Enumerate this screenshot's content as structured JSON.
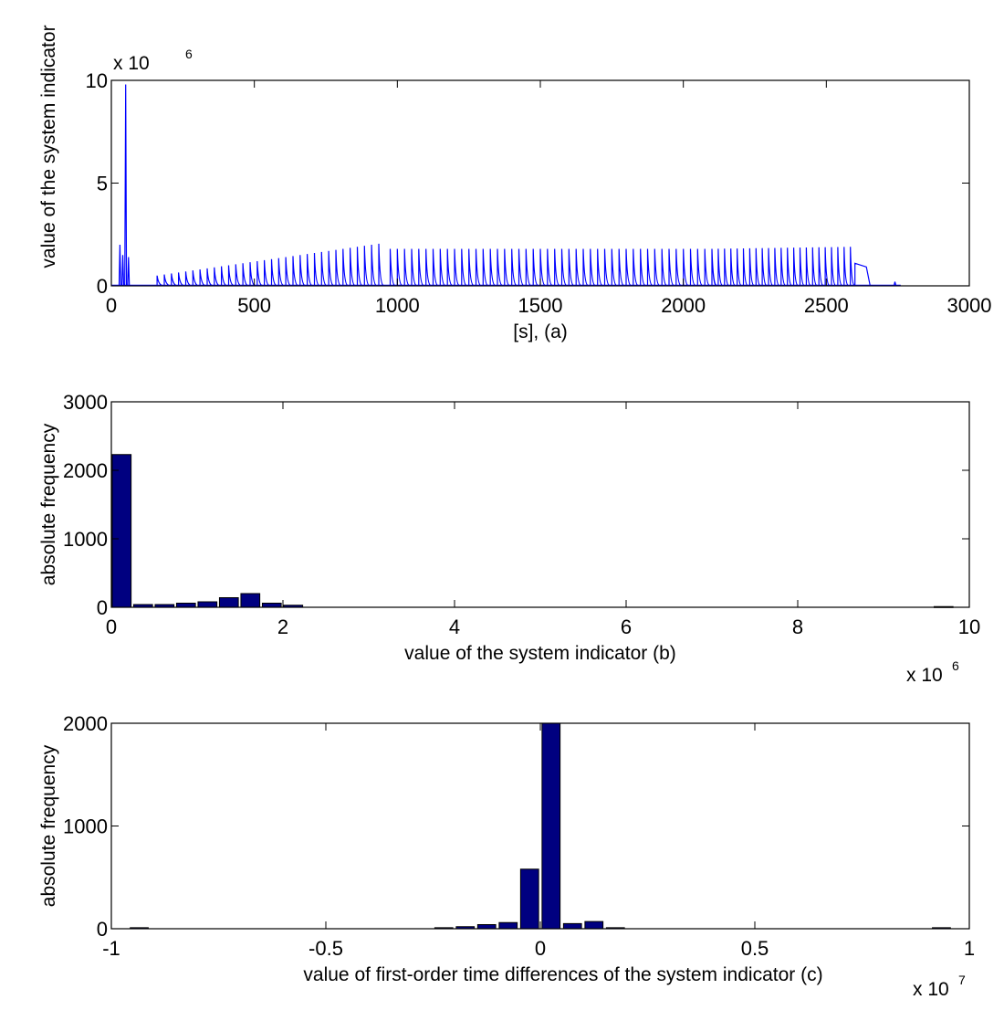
{
  "chart_data": [
    {
      "id": "a",
      "type": "line",
      "xlabel": "[s], (a)",
      "ylabel": "value of the system indicator",
      "xlim": [
        0,
        3000
      ],
      "ylim": [
        0,
        10
      ],
      "xticks": [
        0,
        500,
        1000,
        1500,
        2000,
        2500,
        3000
      ],
      "xtick_labels": [
        "0",
        "500",
        "1000",
        "1500",
        "2000",
        "2500",
        "3000"
      ],
      "yticks": [
        0,
        5,
        10
      ],
      "ytick_labels": [
        "0",
        "5",
        "10"
      ],
      "y_multiplier": {
        "base": "x 10",
        "exponent": "6"
      },
      "series": [
        {
          "color": "#0000ff",
          "segments": [
            {
              "type": "spike",
              "x": 30,
              "y": 2.0
            },
            {
              "type": "spike",
              "x": 40,
              "y": 1.5
            },
            {
              "type": "spike",
              "x": 50,
              "y": 9.8
            },
            {
              "type": "spike",
              "x": 60,
              "y": 1.4
            },
            {
              "type": "spikes",
              "start": 160,
              "end": 950,
              "step": 25,
              "y_start": 0.5,
              "y_end": 2.1
            },
            {
              "type": "spikes",
              "start": 975,
              "end": 2100,
              "step": 25,
              "y_start": 1.8,
              "y_end": 1.8
            },
            {
              "type": "spikes",
              "start": 2100,
              "end": 2600,
              "step": 22,
              "y_start": 1.8,
              "y_end": 1.9
            },
            {
              "type": "block",
              "start": 2600,
              "end": 2640,
              "y": 1.1
            },
            {
              "type": "spike",
              "x": 2740,
              "y": 0.2
            }
          ]
        }
      ]
    },
    {
      "id": "b",
      "type": "bar",
      "xlabel": "value of the system indicator (b)",
      "ylabel": "absolute frequency",
      "xlim": [
        0,
        10
      ],
      "ylim": [
        0,
        3000
      ],
      "xticks": [
        0,
        2,
        4,
        6,
        8,
        10
      ],
      "xtick_labels": [
        "0",
        "2",
        "4",
        "6",
        "8",
        "10"
      ],
      "yticks": [
        0,
        1000,
        2000,
        3000
      ],
      "ytick_labels": [
        "0",
        "1000",
        "2000",
        "3000"
      ],
      "x_multiplier": {
        "base": "x 10",
        "exponent": "6"
      },
      "bar_width": 0.22,
      "x": [
        0.12,
        0.37,
        0.62,
        0.87,
        1.12,
        1.37,
        1.62,
        1.87,
        2.12,
        9.7
      ],
      "values": [
        2230,
        40,
        40,
        60,
        80,
        140,
        200,
        60,
        30,
        10
      ],
      "color": "#000080"
    },
    {
      "id": "c",
      "type": "bar",
      "xlabel": "value of first-order time differences of the system indicator (c)",
      "ylabel": "absolute frequency",
      "xlim": [
        -1,
        1
      ],
      "ylim": [
        0,
        2000
      ],
      "xticks": [
        -1,
        -0.5,
        0,
        0.5,
        1
      ],
      "xtick_labels": [
        "-1",
        "-0.5",
        "0",
        "0.5",
        "1"
      ],
      "yticks": [
        0,
        1000,
        2000
      ],
      "ytick_labels": [
        "0",
        "1000",
        "2000"
      ],
      "x_multiplier": {
        "base": "x 10",
        "exponent": "7"
      },
      "bar_width": 0.042,
      "x": [
        -0.935,
        -0.225,
        -0.175,
        -0.125,
        -0.075,
        -0.025,
        0.025,
        0.075,
        0.125,
        0.175,
        0.935
      ],
      "values": [
        10,
        10,
        20,
        40,
        60,
        580,
        2000,
        50,
        70,
        10,
        10
      ],
      "color": "#000080"
    }
  ]
}
